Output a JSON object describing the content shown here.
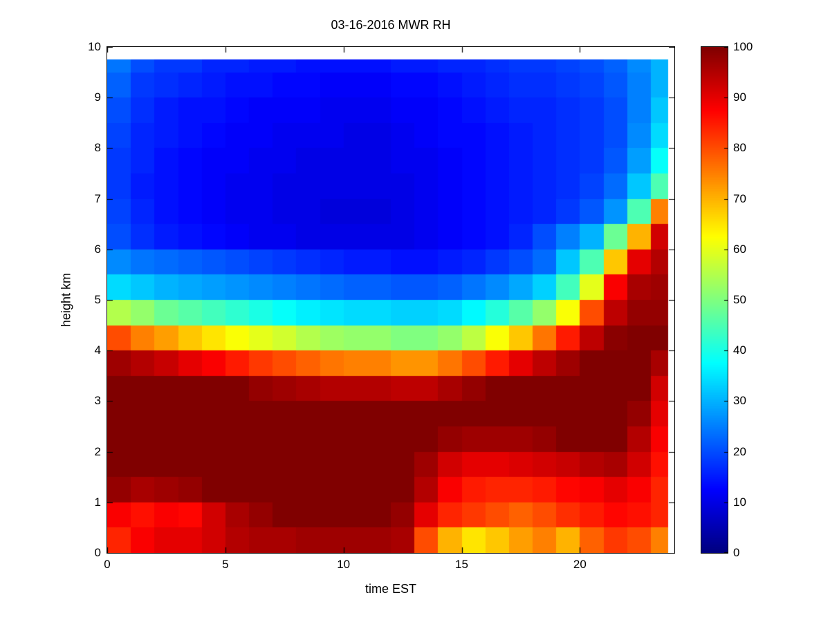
{
  "chart_data": {
    "type": "heatmap",
    "title": "03-16-2016 MWR RH",
    "xlabel": "time EST",
    "ylabel": "height km",
    "xlim": [
      0,
      24
    ],
    "ylim": [
      0,
      10
    ],
    "xticks": [
      0,
      5,
      10,
      15,
      20
    ],
    "yticks": [
      0,
      1,
      2,
      3,
      4,
      5,
      6,
      7,
      8,
      9,
      10
    ],
    "grid": "off",
    "colormap": "jet",
    "colorbar": {
      "min": 0,
      "max": 100,
      "ticks": [
        0,
        10,
        20,
        30,
        40,
        50,
        60,
        70,
        80,
        90,
        100
      ],
      "position": "right"
    },
    "time_edges": [
      0,
      1,
      2,
      3,
      4,
      5,
      6,
      7,
      8,
      9,
      10,
      11,
      12,
      13,
      14,
      15,
      16,
      17,
      18,
      19,
      20,
      21,
      22,
      23,
      23.75
    ],
    "height_edges": [
      0,
      0.5,
      1,
      1.5,
      2,
      2.5,
      3,
      3.5,
      4,
      4.5,
      5,
      5.5,
      6,
      6.5,
      7,
      7.5,
      8,
      8.5,
      9,
      9.5,
      9.75
    ],
    "row_order": "bottom-to-top matching height_edges",
    "values": [
      [
        84,
        88,
        90,
        90,
        92,
        95,
        96,
        96,
        97,
        97,
        97,
        97,
        96,
        80,
        70,
        65,
        68,
        72,
        75,
        70,
        78,
        82,
        80,
        75
      ],
      [
        88,
        86,
        88,
        87,
        92,
        96,
        98,
        100,
        100,
        100,
        100,
        100,
        98,
        90,
        84,
        82,
        80,
        78,
        80,
        83,
        85,
        87,
        86,
        84
      ],
      [
        98,
        96,
        97,
        98,
        100,
        100,
        100,
        100,
        100,
        100,
        100,
        100,
        100,
        95,
        88,
        85,
        84,
        84,
        85,
        87,
        88,
        90,
        88,
        84
      ],
      [
        100,
        100,
        100,
        100,
        100,
        100,
        100,
        100,
        100,
        100,
        100,
        100,
        100,
        97,
        92,
        90,
        90,
        91,
        92,
        93,
        95,
        96,
        92,
        86
      ],
      [
        100,
        100,
        100,
        100,
        100,
        100,
        100,
        100,
        100,
        100,
        100,
        100,
        100,
        100,
        98,
        97,
        97,
        97,
        98,
        100,
        100,
        100,
        95,
        88
      ],
      [
        100,
        100,
        100,
        100,
        100,
        100,
        100,
        100,
        100,
        100,
        100,
        100,
        100,
        100,
        100,
        100,
        100,
        100,
        100,
        100,
        100,
        100,
        98,
        90
      ],
      [
        100,
        100,
        100,
        100,
        100,
        100,
        98,
        97,
        96,
        95,
        95,
        95,
        94,
        94,
        96,
        98,
        100,
        100,
        100,
        100,
        100,
        100,
        100,
        92
      ],
      [
        97,
        95,
        93,
        90,
        88,
        85,
        82,
        80,
        78,
        76,
        75,
        75,
        73,
        73,
        76,
        80,
        85,
        90,
        94,
        97,
        100,
        100,
        100,
        96
      ],
      [
        80,
        75,
        72,
        68,
        65,
        62,
        60,
        58,
        55,
        53,
        52,
        52,
        50,
        50,
        52,
        56,
        62,
        68,
        76,
        85,
        94,
        99,
        100,
        100
      ],
      [
        55,
        52,
        48,
        46,
        44,
        42,
        40,
        38,
        36,
        35,
        34,
        34,
        33,
        33,
        34,
        37,
        41,
        46,
        52,
        62,
        80,
        94,
        98,
        98
      ],
      [
        34,
        32,
        30,
        29,
        28,
        27,
        26,
        25,
        24,
        23,
        22,
        22,
        21,
        21,
        22,
        24,
        26,
        29,
        33,
        44,
        60,
        88,
        96,
        97
      ],
      [
        26,
        24,
        23,
        22,
        21,
        20,
        19,
        18,
        17,
        16,
        15,
        15,
        14,
        14,
        15,
        16,
        18,
        20,
        23,
        32,
        45,
        68,
        90,
        95
      ],
      [
        20,
        17,
        15,
        14,
        13,
        12,
        11,
        11,
        10,
        10,
        10,
        10,
        10,
        11,
        12,
        13,
        14,
        16,
        20,
        25,
        30,
        48,
        70,
        92
      ],
      [
        19,
        16,
        14,
        13,
        12,
        11,
        11,
        10,
        10,
        9,
        9,
        9,
        10,
        11,
        12,
        13,
        14,
        15,
        16,
        18,
        21,
        27,
        45,
        75
      ],
      [
        18,
        15,
        14,
        13,
        12,
        11,
        11,
        10,
        10,
        10,
        10,
        10,
        10,
        11,
        12,
        13,
        14,
        15,
        16,
        17,
        19,
        23,
        32,
        45
      ],
      [
        18,
        16,
        14,
        13,
        12,
        12,
        11,
        11,
        10,
        10,
        10,
        10,
        11,
        11,
        12,
        13,
        14,
        15,
        16,
        17,
        18,
        21,
        28,
        38
      ],
      [
        19,
        16,
        15,
        14,
        13,
        12,
        12,
        11,
        11,
        11,
        10,
        10,
        11,
        12,
        13,
        13,
        14,
        15,
        16,
        17,
        18,
        20,
        26,
        34
      ],
      [
        20,
        17,
        15,
        14,
        14,
        13,
        12,
        12,
        12,
        11,
        11,
        11,
        12,
        12,
        13,
        14,
        15,
        16,
        16,
        17,
        18,
        20,
        25,
        32
      ],
      [
        22,
        18,
        17,
        16,
        15,
        14,
        14,
        13,
        13,
        12,
        12,
        12,
        13,
        13,
        14,
        15,
        16,
        17,
        17,
        18,
        19,
        21,
        25,
        30
      ],
      [
        24,
        20,
        18,
        18,
        16,
        16,
        15,
        15,
        14,
        14,
        14,
        14,
        15,
        15,
        16,
        16,
        17,
        18,
        18,
        19,
        20,
        22,
        26,
        30
      ]
    ]
  }
}
